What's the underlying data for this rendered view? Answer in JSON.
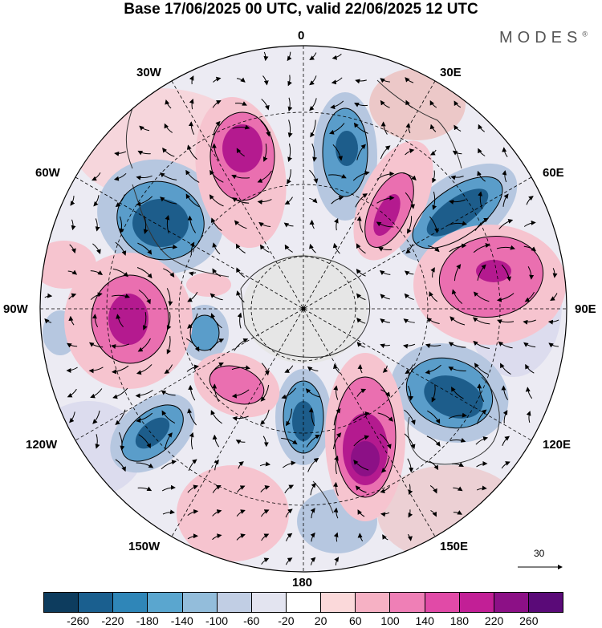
{
  "title": "Base 17/06/2025 00 UTC, valid 22/06/2025 12 UTC",
  "logo": "MODES",
  "logo_mark": "®",
  "longitude_labels": {
    "top": "0",
    "top_right": "30E",
    "right_upper": "60E",
    "right": "90E",
    "right_lower": "120E",
    "bottom_right": "150E",
    "bottom": "180",
    "bottom_left": "150W",
    "left_lower": "120W",
    "left": "90W",
    "left_upper": "60W",
    "top_left": "30W"
  },
  "wind_scale": {
    "value": "30"
  },
  "colorbar": {
    "colors": [
      "#0d3c5e",
      "#1a5f8f",
      "#2f86b8",
      "#5aa6cf",
      "#93bddb",
      "#c1cee4",
      "#e3e4f0",
      "#ffffff",
      "#fbd9da",
      "#f6b1c4",
      "#ef7fb6",
      "#e14aa7",
      "#c21f96",
      "#8c1086",
      "#5a0a78"
    ],
    "tick_labels": [
      "-260",
      "-220",
      "-180",
      "-140",
      "-100",
      "-60",
      "-20",
      "20",
      "60",
      "100",
      "140",
      "180",
      "220",
      "260"
    ]
  },
  "anomaly_colors": {
    "neg_strong": "#1d5d8b",
    "neg_mid": "#5a9dca",
    "neg_weak": "#b6c7e0",
    "pos_weak": "#f6c4cf",
    "pos_mid": "#ea6fb0",
    "pos_strong": "#b41a8f",
    "land": "#e6e6e6"
  }
}
